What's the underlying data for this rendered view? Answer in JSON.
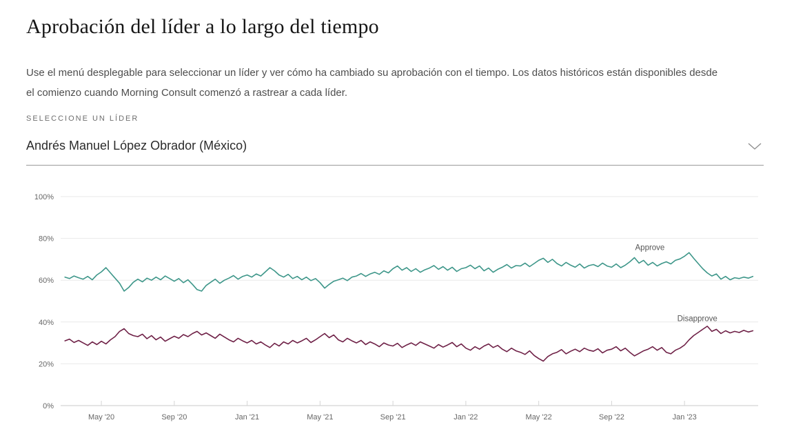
{
  "page": {
    "title": "Aprobación del líder a lo largo del tiempo",
    "description": "Use el menú desplegable para seleccionar un líder y ver cómo ha cambiado su aprobación con el tiempo. Los datos históricos están disponibles desde el comienzo cuando Morning Consult comenzó a rastrear a cada líder."
  },
  "selector": {
    "label": "SELECCIONE UN LÍDER",
    "value": "Andrés Manuel López Obrador (México)",
    "chevron_icon": "chevron-down"
  },
  "chart_data": {
    "type": "line",
    "title": "",
    "xlabel": "",
    "ylabel": "",
    "ylim": [
      0,
      100
    ],
    "grid": true,
    "legend_position": "inline-annotations",
    "start_month": "2020-03",
    "points_per_month": 4,
    "y_ticks": [
      {
        "label": "100%",
        "value": 100
      },
      {
        "label": "80%",
        "value": 80
      },
      {
        "label": "60%",
        "value": 60
      },
      {
        "label": "40%",
        "value": 40
      },
      {
        "label": "20%",
        "value": 20
      },
      {
        "label": "0%",
        "value": 0
      }
    ],
    "x_ticks": [
      {
        "label": "May '20",
        "month": 2
      },
      {
        "label": "Sep '20",
        "month": 6
      },
      {
        "label": "Jan '21",
        "month": 10
      },
      {
        "label": "May '21",
        "month": 14
      },
      {
        "label": "Sep '21",
        "month": 18
      },
      {
        "label": "Jan '22",
        "month": 22
      },
      {
        "label": "May '22",
        "month": 26
      },
      {
        "label": "Sep '22",
        "month": 30
      },
      {
        "label": "Jan '23",
        "month": 34
      }
    ],
    "series": [
      {
        "name": "Approve",
        "color": "#3d9689",
        "values": [
          61.5,
          60.8,
          62.0,
          61.2,
          60.5,
          61.8,
          60.2,
          62.5,
          64.0,
          66.0,
          63.5,
          61.0,
          58.5,
          54.8,
          56.5,
          59.0,
          60.5,
          59.2,
          61.0,
          60.0,
          61.5,
          60.2,
          62.0,
          60.8,
          59.5,
          60.8,
          58.8,
          60.2,
          58.0,
          55.5,
          54.8,
          57.5,
          59.0,
          60.5,
          58.5,
          60.0,
          61.0,
          62.2,
          60.5,
          61.8,
          62.5,
          61.5,
          63.0,
          62.0,
          64.0,
          66.0,
          64.5,
          62.5,
          61.5,
          62.8,
          60.8,
          61.8,
          60.2,
          61.5,
          59.8,
          60.8,
          58.8,
          56.2,
          58.0,
          59.5,
          60.2,
          61.0,
          59.8,
          61.5,
          62.0,
          63.2,
          61.8,
          63.0,
          63.8,
          62.8,
          64.5,
          63.5,
          65.5,
          66.8,
          64.8,
          66.0,
          64.2,
          65.5,
          63.8,
          65.0,
          65.8,
          67.0,
          65.2,
          66.5,
          64.8,
          66.2,
          64.2,
          65.5,
          66.0,
          67.2,
          65.5,
          66.8,
          64.5,
          65.8,
          63.8,
          65.2,
          66.2,
          67.5,
          65.8,
          67.0,
          66.8,
          68.2,
          66.5,
          68.0,
          69.5,
          70.5,
          68.5,
          70.0,
          68.0,
          66.8,
          68.5,
          67.2,
          66.2,
          67.8,
          65.8,
          67.0,
          67.5,
          66.5,
          68.2,
          66.8,
          66.2,
          67.8,
          66.0,
          67.2,
          68.8,
          70.8,
          68.2,
          69.5,
          67.2,
          68.5,
          66.8,
          68.0,
          68.8,
          67.8,
          69.5,
          70.2,
          71.5,
          73.2,
          70.5,
          68.0,
          65.5,
          63.5,
          62.0,
          63.0,
          60.5,
          61.8,
          60.2,
          61.2,
          60.8,
          61.5,
          61.0,
          61.8
        ]
      },
      {
        "name": "Disapprove",
        "color": "#6e2046",
        "values": [
          31.0,
          31.8,
          30.2,
          31.2,
          30.0,
          28.8,
          30.5,
          29.2,
          30.8,
          29.5,
          31.5,
          33.0,
          35.5,
          36.8,
          34.5,
          33.5,
          33.0,
          34.2,
          32.0,
          33.5,
          31.5,
          32.8,
          30.8,
          32.0,
          33.2,
          32.2,
          34.0,
          33.0,
          34.5,
          35.5,
          33.8,
          34.8,
          33.5,
          32.2,
          34.2,
          32.8,
          31.5,
          30.5,
          32.2,
          31.0,
          30.0,
          31.2,
          29.5,
          30.5,
          29.0,
          27.8,
          29.8,
          28.5,
          30.5,
          29.5,
          31.2,
          30.0,
          31.0,
          32.2,
          30.2,
          31.5,
          33.0,
          34.5,
          32.5,
          33.8,
          31.5,
          30.5,
          32.2,
          31.0,
          30.0,
          31.2,
          29.2,
          30.5,
          29.5,
          28.2,
          30.0,
          29.0,
          28.5,
          29.8,
          27.8,
          29.0,
          30.0,
          28.8,
          30.5,
          29.5,
          28.5,
          27.5,
          29.2,
          28.0,
          29.0,
          30.2,
          28.2,
          29.5,
          27.5,
          26.5,
          28.2,
          27.0,
          28.5,
          29.5,
          27.8,
          28.8,
          27.0,
          25.8,
          27.5,
          26.2,
          25.5,
          24.5,
          26.2,
          24.0,
          22.5,
          21.3,
          23.5,
          24.8,
          25.5,
          26.8,
          24.8,
          26.0,
          27.0,
          25.8,
          27.5,
          26.5,
          26.0,
          27.2,
          25.2,
          26.5,
          27.0,
          28.2,
          26.2,
          27.5,
          25.5,
          23.8,
          25.0,
          26.2,
          27.0,
          28.2,
          26.5,
          27.8,
          25.5,
          24.8,
          26.5,
          27.5,
          29.0,
          31.5,
          33.5,
          35.0,
          36.5,
          38.0,
          35.5,
          36.5,
          34.5,
          35.8,
          34.8,
          35.5,
          35.0,
          36.0,
          35.2,
          35.8
        ]
      }
    ],
    "annotations": [
      {
        "text": "Approve",
        "month": 32.1,
        "value": 74.5
      },
      {
        "text": "Disapprove",
        "month": 34.7,
        "value": 40.5
      }
    ],
    "colors": {
      "grid": "#e9e9e9",
      "axis": "#c9c9c9",
      "tick": "#d5d5d5",
      "axis_text": "#666666"
    }
  }
}
